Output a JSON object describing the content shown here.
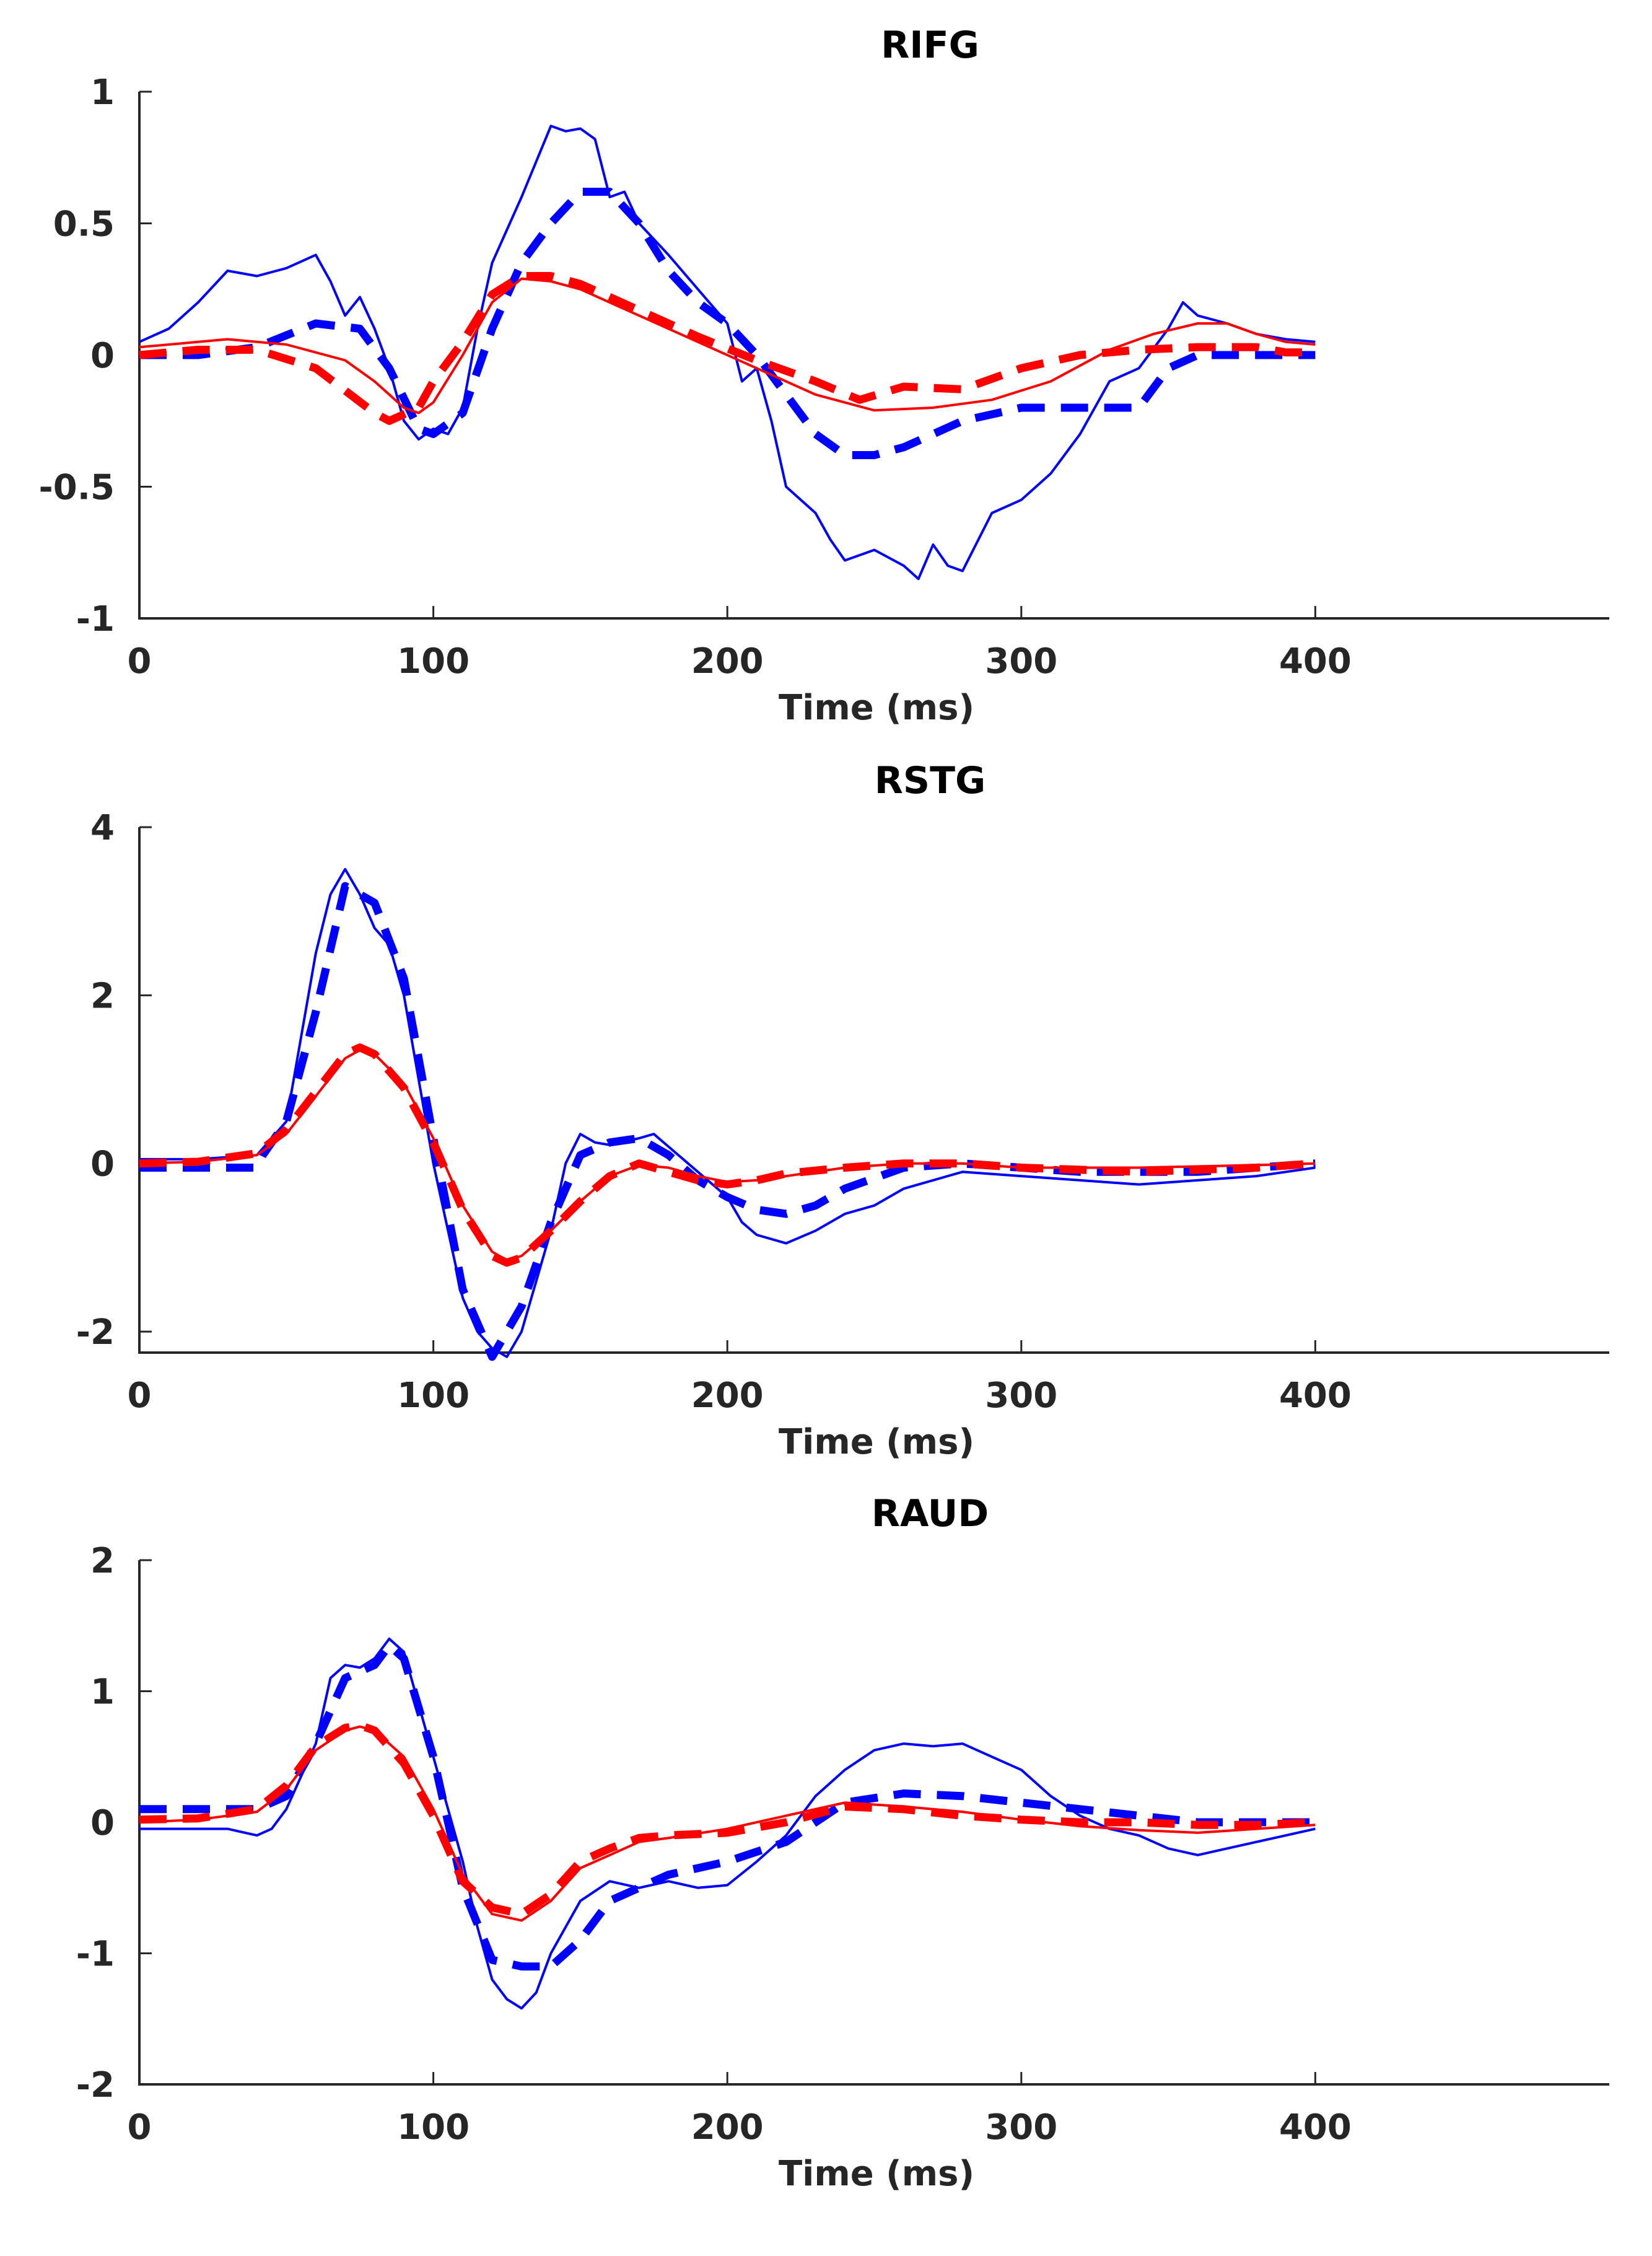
{
  "chart_data": [
    {
      "type": "line",
      "title": "RIFG",
      "xlabel": "Time (ms)",
      "ylabel": "",
      "xlim": [
        0,
        500
      ],
      "ylim": [
        -1,
        1
      ],
      "xticks": [
        0,
        100,
        200,
        300,
        400
      ],
      "yticks": [
        -1,
        -0.5,
        0,
        0.5,
        1
      ],
      "ytick_labels": [
        "-1",
        "-0.5",
        "0",
        "0.5",
        "1"
      ],
      "grid": false,
      "series": [
        {
          "color": "#0000ff",
          "style": "solid",
          "width": "thin",
          "x": [
            0,
            10,
            20,
            30,
            40,
            50,
            60,
            65,
            70,
            75,
            80,
            85,
            90,
            95,
            100,
            105,
            110,
            115,
            120,
            130,
            140,
            145,
            150,
            155,
            160,
            165,
            170,
            180,
            190,
            200,
            205,
            210,
            215,
            220,
            230,
            235,
            240,
            250,
            260,
            265,
            270,
            275,
            280,
            290,
            300,
            310,
            320,
            330,
            340,
            350,
            355,
            360,
            370,
            380,
            390,
            400
          ],
          "y": [
            0.05,
            0.1,
            0.2,
            0.32,
            0.3,
            0.33,
            0.38,
            0.28,
            0.15,
            0.22,
            0.1,
            -0.05,
            -0.25,
            -0.32,
            -0.28,
            -0.3,
            -0.2,
            0.1,
            0.35,
            0.6,
            0.87,
            0.85,
            0.86,
            0.82,
            0.6,
            0.62,
            0.5,
            0.38,
            0.25,
            0.12,
            -0.1,
            -0.05,
            -0.25,
            -0.5,
            -0.6,
            -0.7,
            -0.78,
            -0.74,
            -0.8,
            -0.85,
            -0.72,
            -0.8,
            -0.82,
            -0.6,
            -0.55,
            -0.45,
            -0.3,
            -0.1,
            -0.05,
            0.1,
            0.2,
            0.15,
            0.12,
            0.08,
            0.06,
            0.05
          ]
        },
        {
          "color": "#0000ff",
          "style": "dashed",
          "width": "thick",
          "x": [
            0,
            20,
            40,
            60,
            75,
            85,
            95,
            100,
            110,
            120,
            130,
            140,
            150,
            160,
            170,
            180,
            190,
            200,
            210,
            220,
            230,
            240,
            250,
            260,
            280,
            300,
            320,
            340,
            350,
            360,
            370,
            380,
            390,
            400
          ],
          "y": [
            0,
            0,
            0.03,
            0.12,
            0.1,
            -0.05,
            -0.28,
            -0.3,
            -0.22,
            0.1,
            0.35,
            0.5,
            0.62,
            0.62,
            0.5,
            0.32,
            0.2,
            0.12,
            0.0,
            -0.15,
            -0.3,
            -0.38,
            -0.38,
            -0.35,
            -0.25,
            -0.2,
            -0.2,
            -0.2,
            -0.05,
            0.0,
            0.0,
            0.0,
            0.0,
            0.0
          ]
        },
        {
          "color": "#ff0000",
          "style": "solid",
          "width": "thin",
          "x": [
            0,
            20,
            30,
            50,
            70,
            80,
            90,
            95,
            100,
            110,
            120,
            130,
            140,
            150,
            170,
            190,
            210,
            230,
            250,
            270,
            290,
            310,
            330,
            345,
            360,
            370,
            380,
            390,
            400
          ],
          "y": [
            0.03,
            0.05,
            0.06,
            0.04,
            -0.02,
            -0.1,
            -0.2,
            -0.22,
            -0.18,
            0.0,
            0.2,
            0.29,
            0.28,
            0.25,
            0.15,
            0.05,
            -0.05,
            -0.15,
            -0.21,
            -0.2,
            -0.17,
            -0.1,
            0.02,
            0.08,
            0.12,
            0.12,
            0.08,
            0.05,
            0.04
          ]
        },
        {
          "color": "#ff0000",
          "style": "dashed",
          "width": "thick",
          "x": [
            0,
            20,
            40,
            60,
            80,
            85,
            95,
            100,
            110,
            120,
            130,
            140,
            150,
            170,
            190,
            210,
            230,
            245,
            260,
            280,
            300,
            320,
            340,
            360,
            380,
            390,
            400
          ],
          "y": [
            0.0,
            0.02,
            0.02,
            -0.05,
            -0.22,
            -0.25,
            -0.2,
            -0.1,
            0.05,
            0.23,
            0.3,
            0.3,
            0.27,
            0.17,
            0.07,
            -0.02,
            -0.1,
            -0.17,
            -0.12,
            -0.13,
            -0.05,
            0.0,
            0.02,
            0.03,
            0.03,
            0.01,
            0.01
          ]
        }
      ]
    },
    {
      "type": "line",
      "title": "RSTG",
      "xlabel": "Time (ms)",
      "ylabel": "",
      "xlim": [
        0,
        500
      ],
      "ylim": [
        -2.25,
        4
      ],
      "xticks": [
        0,
        100,
        200,
        300,
        400
      ],
      "yticks": [
        -2,
        0,
        2,
        4
      ],
      "ytick_labels": [
        "-2",
        "0",
        "2",
        "4"
      ],
      "grid": false,
      "series": [
        {
          "color": "#0000ff",
          "style": "solid",
          "width": "thin",
          "x": [
            0,
            20,
            40,
            50,
            55,
            60,
            65,
            70,
            75,
            80,
            85,
            90,
            100,
            110,
            115,
            120,
            125,
            130,
            140,
            145,
            150,
            155,
            160,
            170,
            175,
            180,
            190,
            200,
            205,
            210,
            220,
            230,
            240,
            250,
            260,
            280,
            300,
            320,
            340,
            360,
            380,
            400
          ],
          "y": [
            0.05,
            0.05,
            0.1,
            0.5,
            1.5,
            2.5,
            3.2,
            3.5,
            3.2,
            2.8,
            2.6,
            2.0,
            0.0,
            -1.6,
            -2.0,
            -2.2,
            -2.3,
            -2.0,
            -0.8,
            0.0,
            0.35,
            0.25,
            0.22,
            0.3,
            0.35,
            0.2,
            -0.1,
            -0.4,
            -0.7,
            -0.85,
            -0.95,
            -0.8,
            -0.6,
            -0.5,
            -0.3,
            -0.1,
            -0.15,
            -0.2,
            -0.25,
            -0.2,
            -0.15,
            -0.05
          ]
        },
        {
          "color": "#0000ff",
          "style": "dashed",
          "width": "thick",
          "x": [
            0,
            20,
            40,
            42,
            50,
            60,
            70,
            80,
            90,
            100,
            110,
            120,
            130,
            140,
            150,
            160,
            170,
            180,
            190,
            200,
            210,
            220,
            230,
            240,
            260,
            280,
            300,
            320,
            340,
            360,
            380,
            400
          ],
          "y": [
            -0.05,
            -0.05,
            -0.05,
            0.1,
            0.5,
            1.8,
            3.3,
            3.1,
            2.2,
            0.3,
            -1.5,
            -2.3,
            -1.7,
            -0.7,
            0.1,
            0.25,
            0.3,
            0.1,
            -0.2,
            -0.4,
            -0.55,
            -0.6,
            -0.5,
            -0.3,
            -0.05,
            0.0,
            -0.05,
            -0.1,
            -0.1,
            -0.1,
            -0.05,
            0.0
          ]
        },
        {
          "color": "#ff0000",
          "style": "solid",
          "width": "thin",
          "x": [
            0,
            20,
            40,
            50,
            60,
            70,
            75,
            80,
            90,
            100,
            110,
            120,
            125,
            130,
            140,
            150,
            160,
            170,
            180,
            190,
            200,
            210,
            220,
            240,
            260,
            280,
            300,
            340,
            380,
            400
          ],
          "y": [
            0,
            0.02,
            0.1,
            0.35,
            0.8,
            1.25,
            1.35,
            1.3,
            0.95,
            0.3,
            -0.5,
            -1.05,
            -1.15,
            -1.1,
            -0.8,
            -0.45,
            -0.15,
            -0.02,
            -0.05,
            -0.15,
            -0.22,
            -0.2,
            -0.15,
            -0.05,
            0.0,
            0.0,
            -0.05,
            -0.05,
            -0.02,
            0.0
          ]
        },
        {
          "color": "#ff0000",
          "style": "dashed",
          "width": "thick",
          "x": [
            0,
            20,
            40,
            50,
            60,
            70,
            75,
            80,
            90,
            100,
            110,
            120,
            125,
            130,
            140,
            150,
            160,
            170,
            180,
            190,
            200,
            210,
            220,
            240,
            260,
            280,
            300,
            340,
            380,
            400
          ],
          "y": [
            0,
            0.02,
            0.12,
            0.4,
            0.85,
            1.3,
            1.38,
            1.3,
            0.9,
            0.25,
            -0.55,
            -1.1,
            -1.18,
            -1.12,
            -0.8,
            -0.45,
            -0.15,
            0.0,
            -0.1,
            -0.2,
            -0.25,
            -0.2,
            -0.12,
            -0.05,
            0.0,
            0.0,
            -0.05,
            -0.1,
            -0.05,
            0.0
          ]
        }
      ]
    },
    {
      "type": "line",
      "title": "RAUD",
      "xlabel": "Time (ms)",
      "ylabel": "",
      "xlim": [
        0,
        500
      ],
      "ylim": [
        -2,
        2
      ],
      "xticks": [
        0,
        100,
        200,
        300,
        400
      ],
      "yticks": [
        -2,
        -1,
        0,
        1,
        2
      ],
      "ytick_labels": [
        "-2",
        "-1",
        "0",
        "1",
        "2"
      ],
      "grid": false,
      "series": [
        {
          "color": "#0000ff",
          "style": "solid",
          "width": "thin",
          "x": [
            0,
            20,
            30,
            40,
            45,
            50,
            60,
            65,
            70,
            75,
            80,
            85,
            90,
            100,
            110,
            115,
            120,
            125,
            130,
            135,
            140,
            150,
            160,
            170,
            180,
            190,
            200,
            210,
            220,
            230,
            240,
            250,
            260,
            270,
            280,
            290,
            300,
            310,
            320,
            330,
            340,
            350,
            360,
            370,
            380,
            390,
            400
          ],
          "y": [
            -0.05,
            -0.05,
            -0.05,
            -0.1,
            -0.05,
            0.1,
            0.6,
            1.1,
            1.2,
            1.18,
            1.25,
            1.4,
            1.3,
            0.5,
            -0.3,
            -0.8,
            -1.2,
            -1.35,
            -1.42,
            -1.3,
            -1.0,
            -0.6,
            -0.45,
            -0.5,
            -0.45,
            -0.5,
            -0.48,
            -0.3,
            -0.1,
            0.2,
            0.4,
            0.55,
            0.6,
            0.58,
            0.6,
            0.5,
            0.4,
            0.2,
            0.05,
            -0.05,
            -0.1,
            -0.2,
            -0.25,
            -0.2,
            -0.15,
            -0.1,
            -0.05
          ]
        },
        {
          "color": "#0000ff",
          "style": "dashed",
          "width": "thick",
          "x": [
            0,
            20,
            40,
            50,
            60,
            70,
            80,
            85,
            90,
            100,
            110,
            120,
            130,
            140,
            150,
            160,
            180,
            200,
            220,
            240,
            260,
            280,
            300,
            320,
            340,
            360,
            380,
            400
          ],
          "y": [
            0.1,
            0.1,
            0.1,
            0.2,
            0.6,
            1.1,
            1.2,
            1.35,
            1.25,
            0.5,
            -0.5,
            -1.05,
            -1.1,
            -1.1,
            -0.9,
            -0.6,
            -0.4,
            -0.3,
            -0.15,
            0.15,
            0.22,
            0.2,
            0.15,
            0.1,
            0.05,
            0.0,
            0.0,
            0.0
          ]
        },
        {
          "color": "#ff0000",
          "style": "solid",
          "width": "thin",
          "x": [
            0,
            20,
            40,
            50,
            60,
            70,
            75,
            80,
            90,
            100,
            110,
            120,
            130,
            140,
            150,
            160,
            170,
            180,
            200,
            220,
            240,
            260,
            280,
            300,
            320,
            340,
            360,
            380,
            400
          ],
          "y": [
            0.0,
            0.02,
            0.08,
            0.25,
            0.55,
            0.7,
            0.73,
            0.7,
            0.5,
            0.1,
            -0.4,
            -0.7,
            -0.75,
            -0.6,
            -0.35,
            -0.25,
            -0.15,
            -0.12,
            -0.05,
            0.05,
            0.15,
            0.12,
            0.08,
            0.02,
            -0.03,
            -0.06,
            -0.08,
            -0.05,
            -0.02
          ]
        },
        {
          "color": "#ff0000",
          "style": "dashed",
          "width": "thick",
          "x": [
            0,
            20,
            40,
            50,
            60,
            70,
            75,
            80,
            90,
            100,
            110,
            120,
            130,
            140,
            150,
            160,
            170,
            180,
            200,
            220,
            240,
            260,
            280,
            300,
            320,
            340,
            360,
            380,
            400
          ],
          "y": [
            0.02,
            0.03,
            0.1,
            0.28,
            0.58,
            0.72,
            0.74,
            0.7,
            0.45,
            0.05,
            -0.45,
            -0.65,
            -0.7,
            -0.55,
            -0.3,
            -0.2,
            -0.12,
            -0.1,
            -0.08,
            0.0,
            0.12,
            0.1,
            0.05,
            0.02,
            0.0,
            0.0,
            -0.02,
            -0.02,
            0.0
          ]
        }
      ]
    }
  ]
}
